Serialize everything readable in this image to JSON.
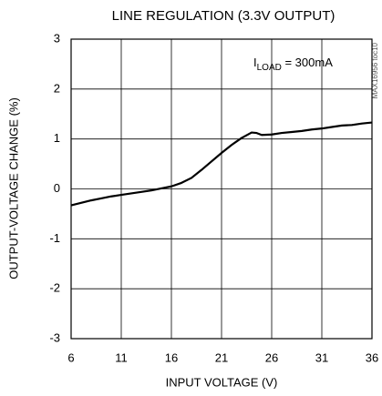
{
  "chart_data": {
    "type": "line",
    "title": "LINE REGULATION (3.3V OUTPUT)",
    "xlabel": "INPUT VOLTAGE (V)",
    "ylabel": "OUTPUT-VOLTAGE CHANGE (%)",
    "annotation": {
      "text": "I",
      "subscript": "LOAD",
      "suffix": " = 300mA"
    },
    "side_note": "MAX16956 toc10",
    "x": [
      6,
      7,
      8,
      9,
      10,
      11,
      12,
      13,
      14,
      15,
      16,
      17,
      18,
      19,
      20,
      21,
      22,
      23,
      24,
      24.5,
      25,
      26,
      27,
      28,
      29,
      30,
      31,
      32,
      33,
      34,
      35,
      36
    ],
    "series": [
      {
        "name": "Line regulation",
        "color": "#000000",
        "values": [
          -0.33,
          -0.28,
          -0.23,
          -0.19,
          -0.15,
          -0.12,
          -0.09,
          -0.06,
          -0.03,
          0.01,
          0.05,
          0.12,
          0.22,
          0.38,
          0.55,
          0.72,
          0.88,
          1.02,
          1.13,
          1.12,
          1.08,
          1.09,
          1.12,
          1.14,
          1.16,
          1.19,
          1.21,
          1.24,
          1.27,
          1.28,
          1.31,
          1.33
        ]
      }
    ],
    "xlim": [
      6,
      36
    ],
    "xticks": [
      6,
      11,
      16,
      21,
      26,
      31,
      36
    ],
    "ylim": [
      -3,
      3
    ],
    "yticks": [
      -3,
      -2,
      -1,
      0,
      1,
      2,
      3
    ],
    "grid": true
  }
}
